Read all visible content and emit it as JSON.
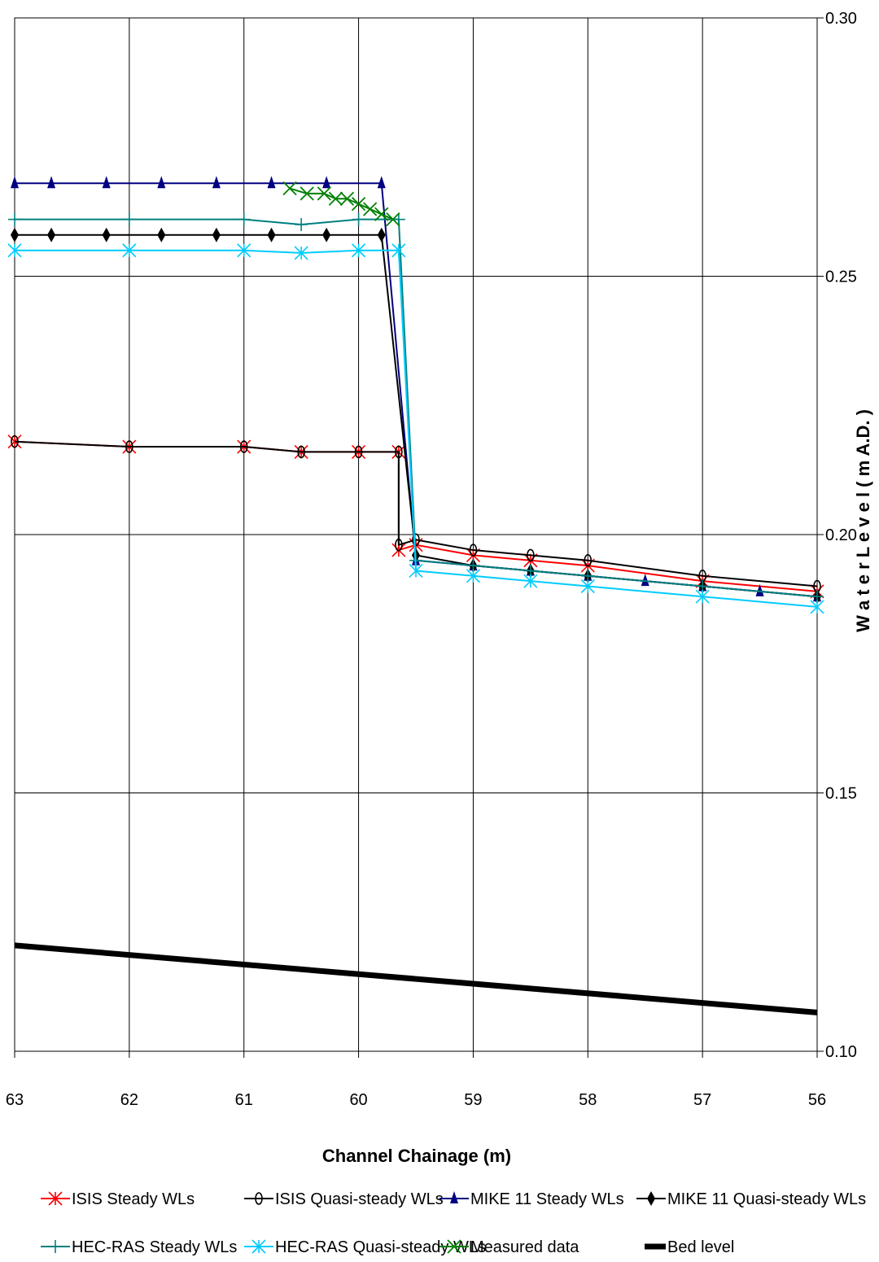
{
  "chart_data": {
    "type": "line",
    "title": "",
    "xlabel": "Channel Chainage (m)",
    "ylabel": "W a t e r   L e v e l   ( m A.D. )",
    "xlim": [
      63,
      56
    ],
    "ylim": [
      0.1,
      0.3
    ],
    "x_reversed": true,
    "y_axis_side": "right",
    "grid": true,
    "legend_position": "bottom",
    "x_ticks": [
      "63",
      "62",
      "61",
      "60",
      "59",
      "58",
      "57",
      "56"
    ],
    "y_ticks": [
      "0.10",
      "0.15",
      "0.20",
      "0.25",
      "0.30"
    ],
    "series": [
      {
        "name": "ISIS Steady WLs",
        "color": "#ff0000",
        "marker": "asterisk",
        "width": 2,
        "points": [
          [
            63,
            0.218
          ],
          [
            62,
            0.217
          ],
          [
            61,
            0.217
          ],
          [
            60.5,
            0.216
          ],
          [
            60,
            0.216
          ],
          [
            59.65,
            0.216
          ],
          [
            59.65,
            0.197
          ],
          [
            59.5,
            0.198
          ],
          [
            59,
            0.196
          ],
          [
            58.5,
            0.195
          ],
          [
            58,
            0.194
          ],
          [
            57,
            0.191
          ],
          [
            56,
            0.189
          ]
        ]
      },
      {
        "name": "ISIS Quasi-steady WLs",
        "color": "#000000",
        "marker": "circle",
        "width": 2,
        "points": [
          [
            63,
            0.218
          ],
          [
            62,
            0.217
          ],
          [
            61,
            0.217
          ],
          [
            60.5,
            0.216
          ],
          [
            60,
            0.216
          ],
          [
            59.65,
            0.216
          ],
          [
            59.65,
            0.198
          ],
          [
            59.5,
            0.199
          ],
          [
            59,
            0.197
          ],
          [
            58.5,
            0.196
          ],
          [
            58,
            0.195
          ],
          [
            57,
            0.192
          ],
          [
            56,
            0.19
          ]
        ]
      },
      {
        "name": "MIKE 11 Steady  WLs",
        "color": "#000080",
        "marker": "triangle",
        "width": 2,
        "points": [
          [
            63,
            0.268
          ],
          [
            62.68,
            0.268
          ],
          [
            62.2,
            0.268
          ],
          [
            61.72,
            0.268
          ],
          [
            61.24,
            0.268
          ],
          [
            60.76,
            0.268
          ],
          [
            60.28,
            0.268
          ],
          [
            59.8,
            0.268
          ],
          [
            59.5,
            0.195
          ],
          [
            59,
            0.194
          ],
          [
            58.5,
            0.193
          ],
          [
            58,
            0.192
          ],
          [
            57.5,
            0.191
          ],
          [
            57,
            0.19
          ],
          [
            56.5,
            0.189
          ],
          [
            56,
            0.188
          ]
        ]
      },
      {
        "name": "MIKE 11 Quasi-steady WLs",
        "color": "#000000",
        "marker": "diamond",
        "width": 2,
        "points": [
          [
            63,
            0.258
          ],
          [
            62.68,
            0.258
          ],
          [
            62.2,
            0.258
          ],
          [
            61.72,
            0.258
          ],
          [
            61.24,
            0.258
          ],
          [
            60.76,
            0.258
          ],
          [
            60.28,
            0.258
          ],
          [
            59.8,
            0.258
          ],
          [
            59.5,
            0.196
          ],
          [
            59,
            0.194
          ],
          [
            58.5,
            0.193
          ],
          [
            58,
            0.192
          ],
          [
            57,
            0.19
          ],
          [
            56,
            0.188
          ]
        ]
      },
      {
        "name": "HEC-RAS Steady WLs",
        "color": "#008080",
        "marker": "plus",
        "width": 2,
        "points": [
          [
            63,
            0.261
          ],
          [
            62,
            0.261
          ],
          [
            61,
            0.261
          ],
          [
            60.5,
            0.26
          ],
          [
            60,
            0.261
          ],
          [
            59.65,
            0.261
          ],
          [
            59.5,
            0.195
          ],
          [
            59,
            0.194
          ],
          [
            58.5,
            0.193
          ],
          [
            58,
            0.192
          ],
          [
            57,
            0.19
          ],
          [
            56,
            0.188
          ]
        ]
      },
      {
        "name": "HEC-RAS Quasi-steady WLs",
        "color": "#00ccff",
        "marker": "asterisk",
        "width": 2,
        "points": [
          [
            63,
            0.255
          ],
          [
            62,
            0.255
          ],
          [
            61,
            0.255
          ],
          [
            60.5,
            0.2545
          ],
          [
            60,
            0.255
          ],
          [
            59.65,
            0.255
          ],
          [
            59.5,
            0.193
          ],
          [
            59,
            0.192
          ],
          [
            58.5,
            0.191
          ],
          [
            58,
            0.19
          ],
          [
            57,
            0.188
          ],
          [
            56,
            0.186
          ]
        ]
      },
      {
        "name": "Measured data",
        "color": "#008000",
        "marker": "x",
        "width": 2,
        "points": [
          [
            60.6,
            0.267
          ],
          [
            60.45,
            0.266
          ],
          [
            60.3,
            0.266
          ],
          [
            60.2,
            0.265
          ],
          [
            60.1,
            0.265
          ],
          [
            60.0,
            0.264
          ],
          [
            59.9,
            0.263
          ],
          [
            59.8,
            0.262
          ],
          [
            59.7,
            0.261
          ]
        ]
      },
      {
        "name": "Bed level",
        "color": "#000000",
        "marker": "none",
        "width": 7,
        "points": [
          [
            63,
            0.1205
          ],
          [
            56,
            0.1075
          ]
        ]
      }
    ]
  }
}
